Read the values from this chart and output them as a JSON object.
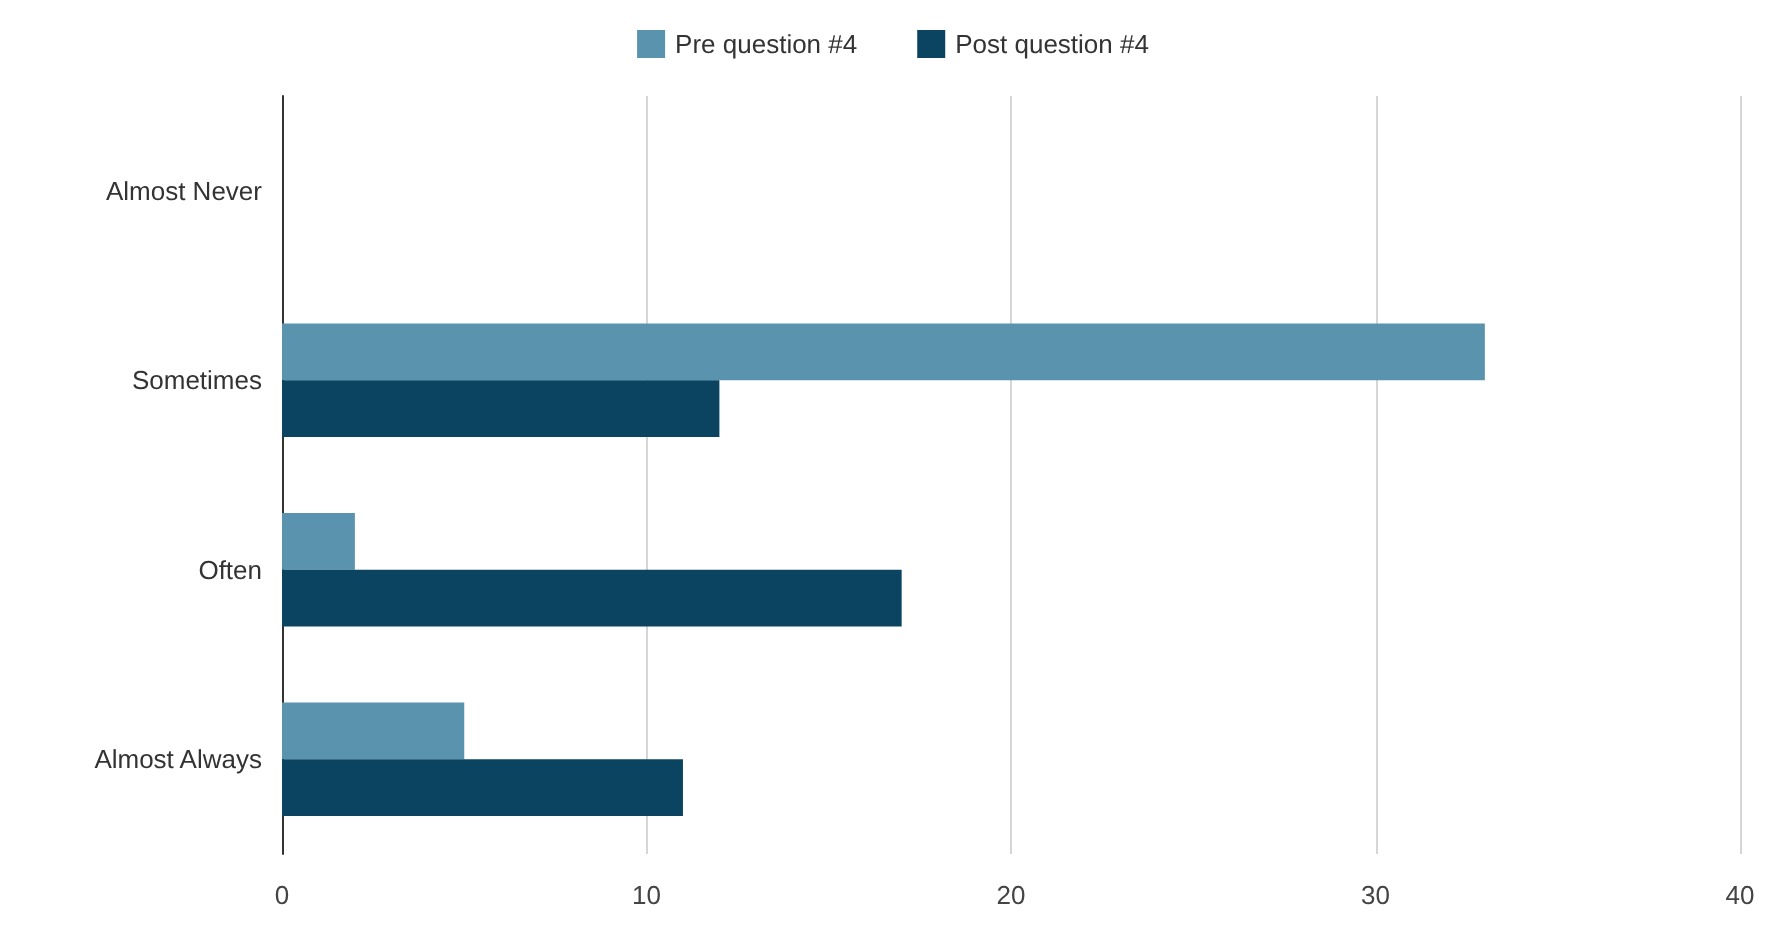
{
  "chart_data": {
    "type": "bar",
    "orientation": "horizontal",
    "categories": [
      "Almost Never",
      "Sometimes",
      "Often",
      "Almost Always"
    ],
    "series": [
      {
        "name": "Pre question #4",
        "color": "#5a93ad",
        "values": [
          0,
          33,
          2,
          5
        ]
      },
      {
        "name": "Post question #4",
        "color": "#0b4461",
        "values": [
          0,
          12,
          17,
          11
        ]
      }
    ],
    "xlim": [
      0,
      40
    ],
    "xticks": [
      0,
      10,
      20,
      30,
      40
    ],
    "grid": "x",
    "legend": "top"
  }
}
